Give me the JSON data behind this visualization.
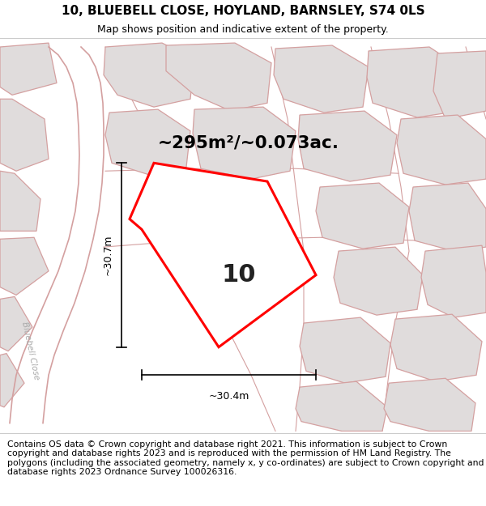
{
  "title_line1": "10, BLUEBELL CLOSE, HOYLAND, BARNSLEY, S74 0LS",
  "title_line2": "Map shows position and indicative extent of the property.",
  "footer_text": "Contains OS data © Crown copyright and database right 2021. This information is subject to Crown copyright and database rights 2023 and is reproduced with the permission of HM Land Registry. The polygons (including the associated geometry, namely x, y co-ordinates) are subject to Crown copyright and database rights 2023 Ordnance Survey 100026316.",
  "map_bg": "#f7f4f4",
  "title_bg": "#ffffff",
  "footer_bg": "#ffffff",
  "parcel_fill": "#e0dcdc",
  "parcel_edge": "#d4a0a0",
  "road_color": "#d4a0a0",
  "road_label": "Bluebell Close",
  "property_color": "#ff0000",
  "property_fill": "#ffffff",
  "property_label": "10",
  "area_label": "~295m²/~0.073ac.",
  "width_label": "~30.4m",
  "height_label": "~30.7m",
  "title_fontsize": 11,
  "subtitle_fontsize": 9,
  "footer_fontsize": 7.8
}
